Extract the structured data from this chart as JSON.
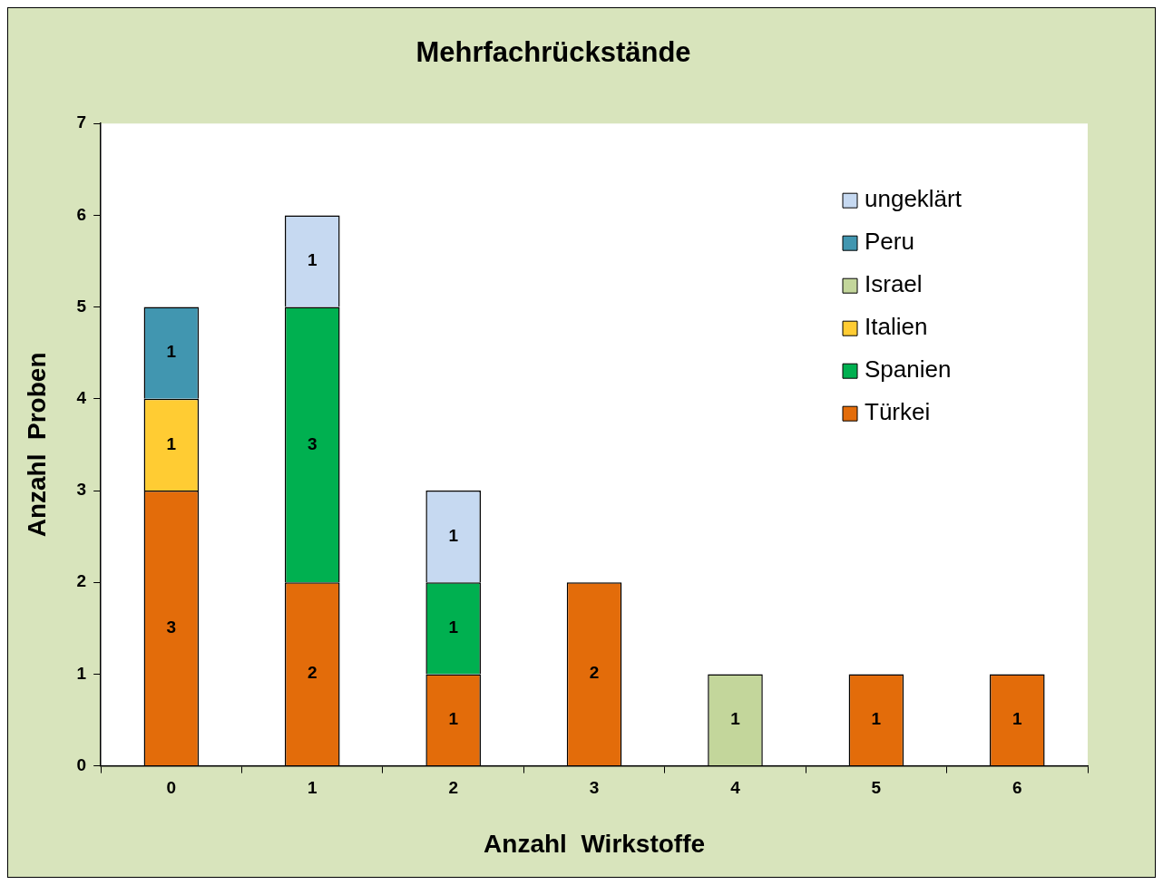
{
  "chart_data": {
    "type": "bar",
    "title": "Mehrfachrückstände",
    "xlabel": "Anzahl  Wirkstoffe",
    "ylabel": "Anzahl  Proben",
    "categories": [
      "0",
      "1",
      "2",
      "3",
      "4",
      "5",
      "6"
    ],
    "stacked": true,
    "data_labels": true,
    "legend": "top right",
    "grid": false,
    "ylim": [
      0,
      7
    ],
    "yticks": [
      0,
      1,
      2,
      3,
      4,
      5,
      6,
      7
    ],
    "series": [
      {
        "name": "Türkei",
        "color": "#e36c0a",
        "values": [
          3,
          2,
          1,
          2,
          null,
          1,
          1
        ]
      },
      {
        "name": "Spanien",
        "color": "#00b050",
        "values": [
          null,
          3,
          1,
          null,
          null,
          null,
          null
        ]
      },
      {
        "name": "Italien",
        "color": "#ffcc33",
        "values": [
          1,
          null,
          null,
          null,
          null,
          null,
          null
        ]
      },
      {
        "name": "Israel",
        "color": "#c3d69b",
        "values": [
          null,
          null,
          null,
          null,
          1,
          null,
          null
        ]
      },
      {
        "name": "Peru",
        "color": "#4196b0",
        "values": [
          1,
          null,
          null,
          null,
          null,
          null,
          null
        ]
      },
      {
        "name": "ungeklärt",
        "color": "#c6d9f1",
        "values": [
          null,
          1,
          1,
          null,
          null,
          null,
          null
        ]
      }
    ]
  }
}
